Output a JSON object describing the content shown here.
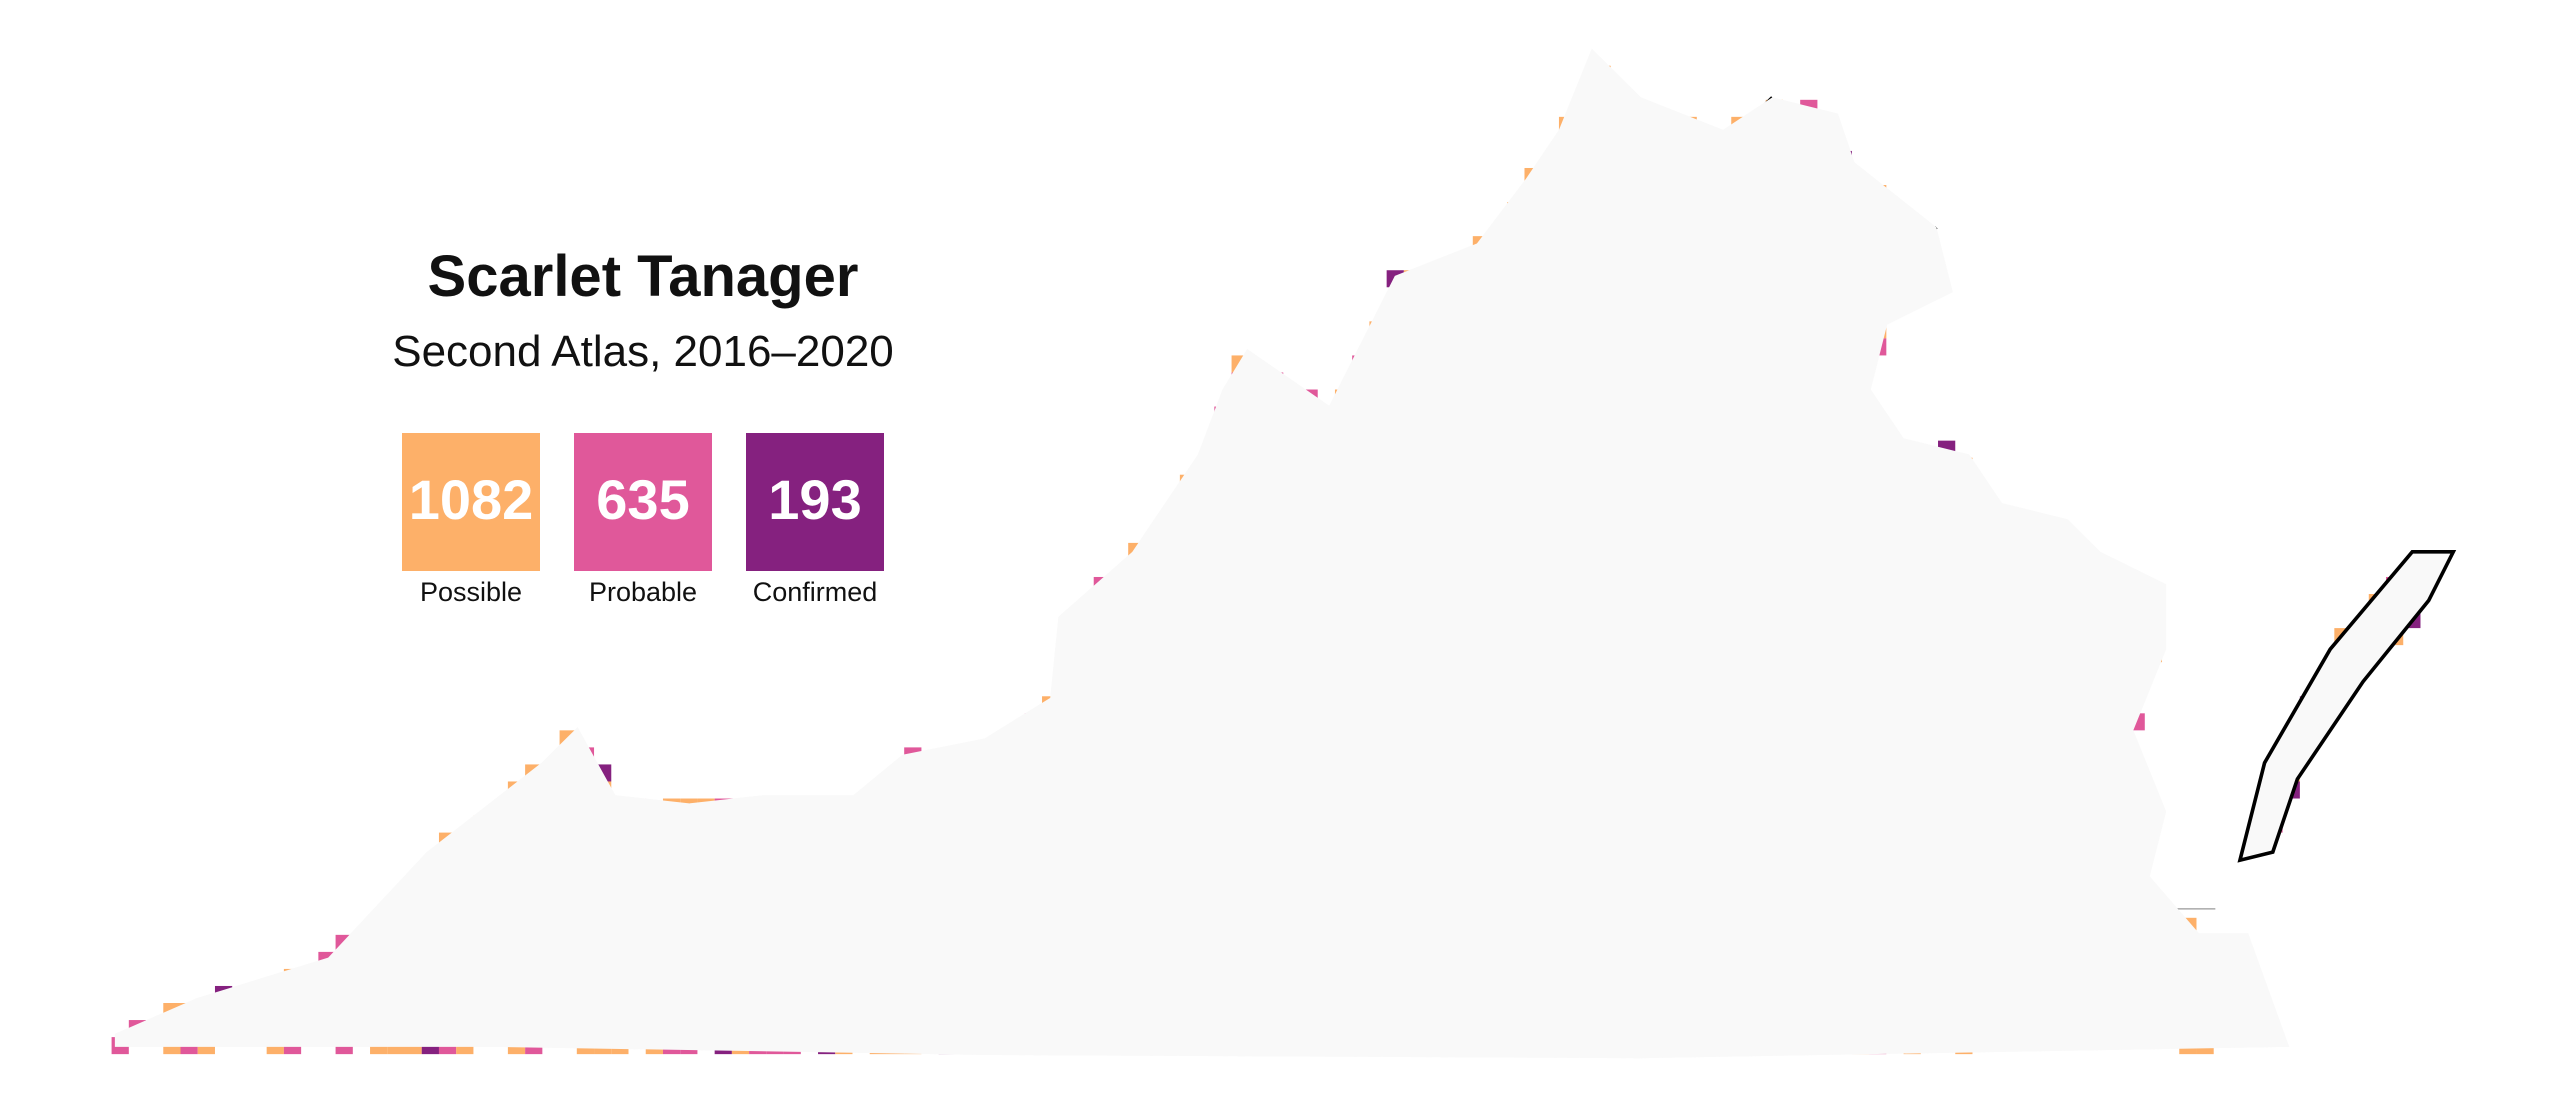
{
  "map": {
    "title": "Scarlet Tanager",
    "subtitle": "Second Atlas, 2016–2020",
    "legend": [
      {
        "count": 1082,
        "label": "Possible",
        "color": "#fdb069"
      },
      {
        "count": 635,
        "label": "Probable",
        "color": "#e0589a"
      },
      {
        "count": 193,
        "label": "Confirmed",
        "color": "#85217f"
      }
    ]
  }
}
